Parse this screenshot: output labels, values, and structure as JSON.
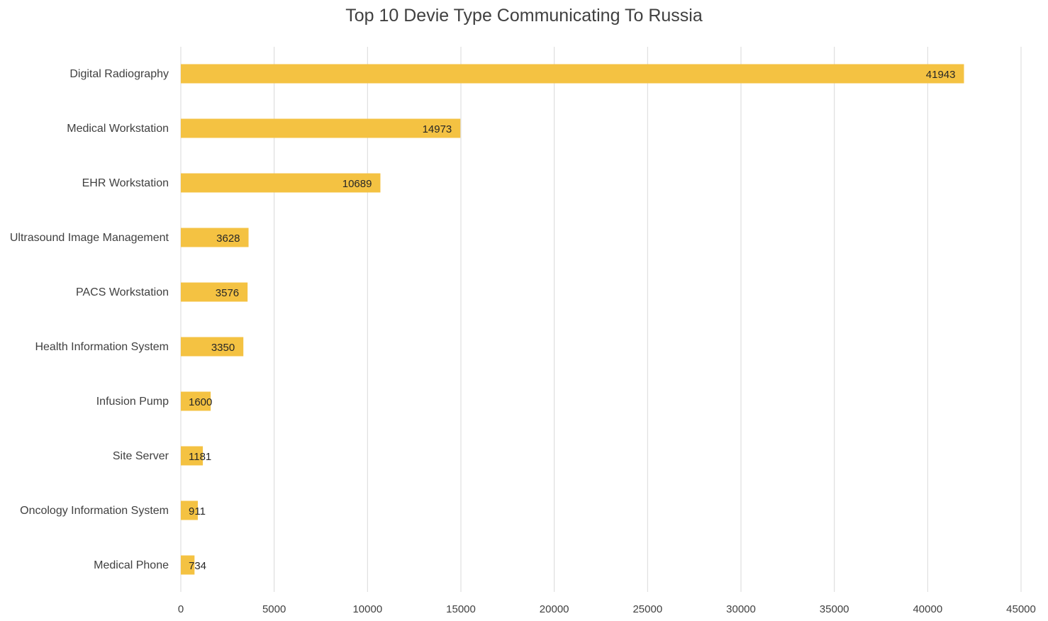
{
  "chart_data": {
    "type": "bar",
    "orientation": "horizontal",
    "title": "Top 10 Devie Type Communicating To Russia",
    "xlabel": "",
    "ylabel": "",
    "categories": [
      "Digital Radiography",
      "Medical Workstation",
      "EHR Workstation",
      "Ultrasound Image Management",
      "PACS Workstation",
      "Health Information System",
      "Infusion Pump",
      "Site Server",
      "Oncology Information System",
      "Medical Phone"
    ],
    "values": [
      41943,
      14973,
      10689,
      3628,
      3576,
      3350,
      1600,
      1181,
      911,
      734
    ],
    "xlim": [
      0,
      45000
    ],
    "xticks": [
      "0",
      "5000",
      "10000",
      "15000",
      "20000",
      "25000",
      "30000",
      "35000",
      "40000",
      "45000"
    ],
    "grid": "vertical",
    "legend": "none",
    "bar_color": "#f4c242"
  }
}
